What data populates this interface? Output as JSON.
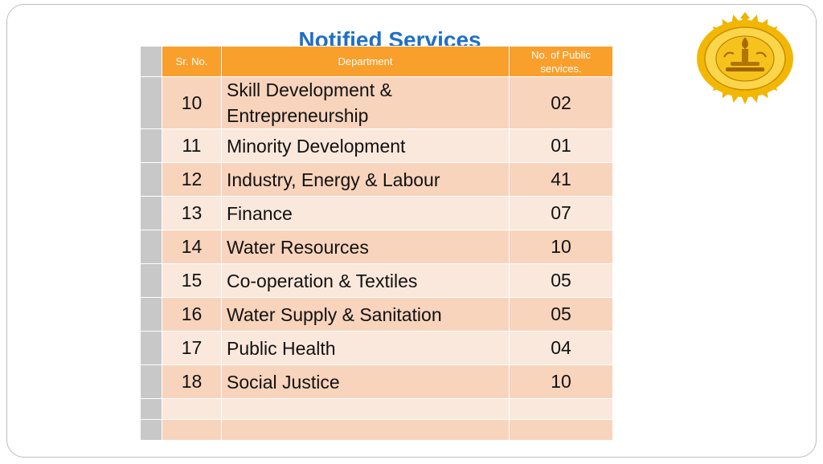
{
  "slide": {
    "title": "Notified Services"
  },
  "table": {
    "headers": {
      "sr_no": "Sr. No.",
      "department": "Department",
      "count_line1": "No. of  Public",
      "count_line2": "services."
    },
    "rows": [
      {
        "sr": "10",
        "department_line1": "Skill Development &",
        "department_line2": "Entrepreneurship",
        "count": "02"
      },
      {
        "sr": "11",
        "department_line1": "Minority Development",
        "department_line2": "",
        "count": "01"
      },
      {
        "sr": "12",
        "department_line1": "Industry, Energy & Labour",
        "department_line2": "",
        "count": "41"
      },
      {
        "sr": "13",
        "department_line1": "Finance",
        "department_line2": "",
        "count": "07"
      },
      {
        "sr": "14",
        "department_line1": "Water Resources",
        "department_line2": "",
        "count": "10"
      },
      {
        "sr": "15",
        "department_line1": "Co-operation & Textiles",
        "department_line2": "",
        "count": "05"
      },
      {
        "sr": "16",
        "department_line1": "Water Supply & Sanitation",
        "department_line2": "",
        "count": "05"
      },
      {
        "sr": "17",
        "department_line1": "Public Health",
        "department_line2": "",
        "count": "04"
      },
      {
        "sr": "18",
        "department_line1": "Social Justice",
        "department_line2": "",
        "count": "10"
      }
    ]
  },
  "colors": {
    "header_orange": "#f99f2b",
    "title_blue": "#1f6fc5",
    "row_dark": "#f8d4bc",
    "row_light": "#fbe8dc",
    "gutter_gray": "#c8c8c8",
    "seal_gold": "#e8a800"
  },
  "emblem": {
    "icon": "government-seal-icon"
  }
}
